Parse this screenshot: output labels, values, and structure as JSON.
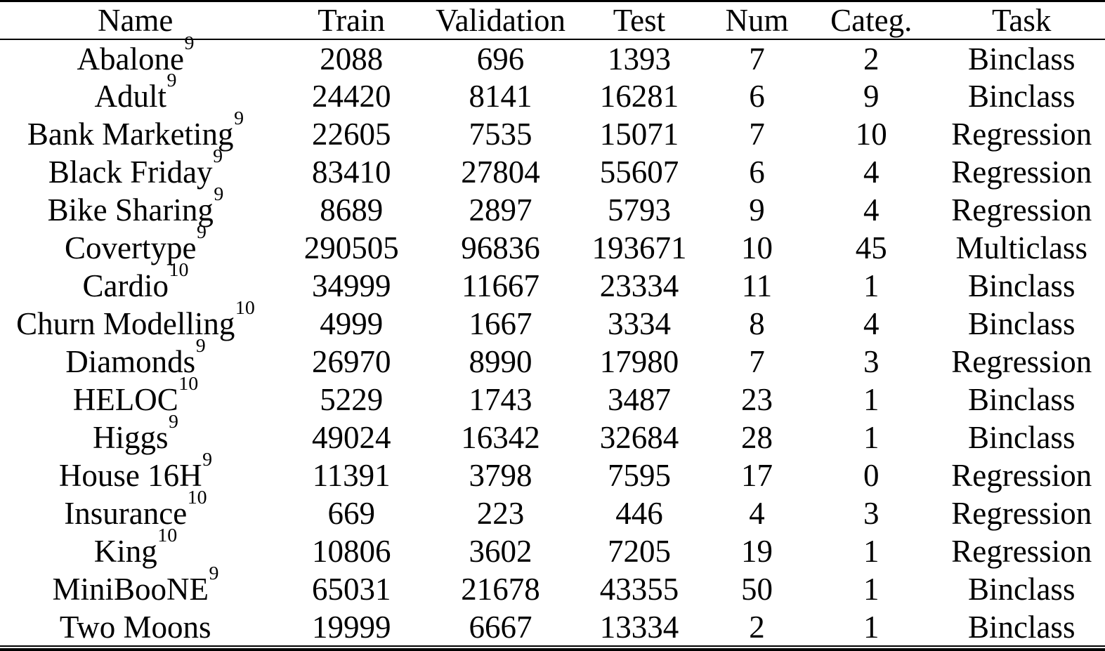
{
  "colors": {
    "text": "#000000",
    "background": "#ffffff",
    "rule": "#000000"
  },
  "table": {
    "columns": [
      "Name",
      "Train",
      "Validation",
      "Test",
      "Num",
      "Categ.",
      "Task"
    ],
    "rows": [
      {
        "name": "Abalone",
        "footnote": "9",
        "train": 2088,
        "validation": 696,
        "test": 1393,
        "num": 7,
        "categ": 2,
        "task": "Binclass"
      },
      {
        "name": "Adult",
        "footnote": "9",
        "train": 24420,
        "validation": 8141,
        "test": 16281,
        "num": 6,
        "categ": 9,
        "task": "Binclass"
      },
      {
        "name": "Bank Marketing",
        "footnote": "9",
        "train": 22605,
        "validation": 7535,
        "test": 15071,
        "num": 7,
        "categ": 10,
        "task": "Regression"
      },
      {
        "name": "Black Friday",
        "footnote": "9",
        "train": 83410,
        "validation": 27804,
        "test": 55607,
        "num": 6,
        "categ": 4,
        "task": "Regression"
      },
      {
        "name": "Bike Sharing",
        "footnote": "9",
        "train": 8689,
        "validation": 2897,
        "test": 5793,
        "num": 9,
        "categ": 4,
        "task": "Regression"
      },
      {
        "name": "Covertype",
        "footnote": "9",
        "train": 290505,
        "validation": 96836,
        "test": 193671,
        "num": 10,
        "categ": 45,
        "task": "Multiclass"
      },
      {
        "name": "Cardio",
        "footnote": "10",
        "train": 34999,
        "validation": 11667,
        "test": 23334,
        "num": 11,
        "categ": 1,
        "task": "Binclass"
      },
      {
        "name": "Churn Modelling",
        "footnote": "10",
        "train": 4999,
        "validation": 1667,
        "test": 3334,
        "num": 8,
        "categ": 4,
        "task": "Binclass"
      },
      {
        "name": "Diamonds",
        "footnote": "9",
        "train": 26970,
        "validation": 8990,
        "test": 17980,
        "num": 7,
        "categ": 3,
        "task": "Regression"
      },
      {
        "name": "HELOC",
        "footnote": "10",
        "train": 5229,
        "validation": 1743,
        "test": 3487,
        "num": 23,
        "categ": 1,
        "task": "Binclass"
      },
      {
        "name": "Higgs",
        "footnote": "9",
        "train": 49024,
        "validation": 16342,
        "test": 32684,
        "num": 28,
        "categ": 1,
        "task": "Binclass"
      },
      {
        "name": "House 16H",
        "footnote": "9",
        "train": 11391,
        "validation": 3798,
        "test": 7595,
        "num": 17,
        "categ": 0,
        "task": "Regression"
      },
      {
        "name": "Insurance",
        "footnote": "10",
        "train": 669,
        "validation": 223,
        "test": 446,
        "num": 4,
        "categ": 3,
        "task": "Regression"
      },
      {
        "name": "King",
        "footnote": "10",
        "train": 10806,
        "validation": 3602,
        "test": 7205,
        "num": 19,
        "categ": 1,
        "task": "Regression"
      },
      {
        "name": "MiniBooNE",
        "footnote": "9",
        "train": 65031,
        "validation": 21678,
        "test": 43355,
        "num": 50,
        "categ": 1,
        "task": "Binclass"
      },
      {
        "name": "Two Moons",
        "footnote": "",
        "train": 19999,
        "validation": 6667,
        "test": 13334,
        "num": 2,
        "categ": 1,
        "task": "Binclass"
      }
    ]
  }
}
